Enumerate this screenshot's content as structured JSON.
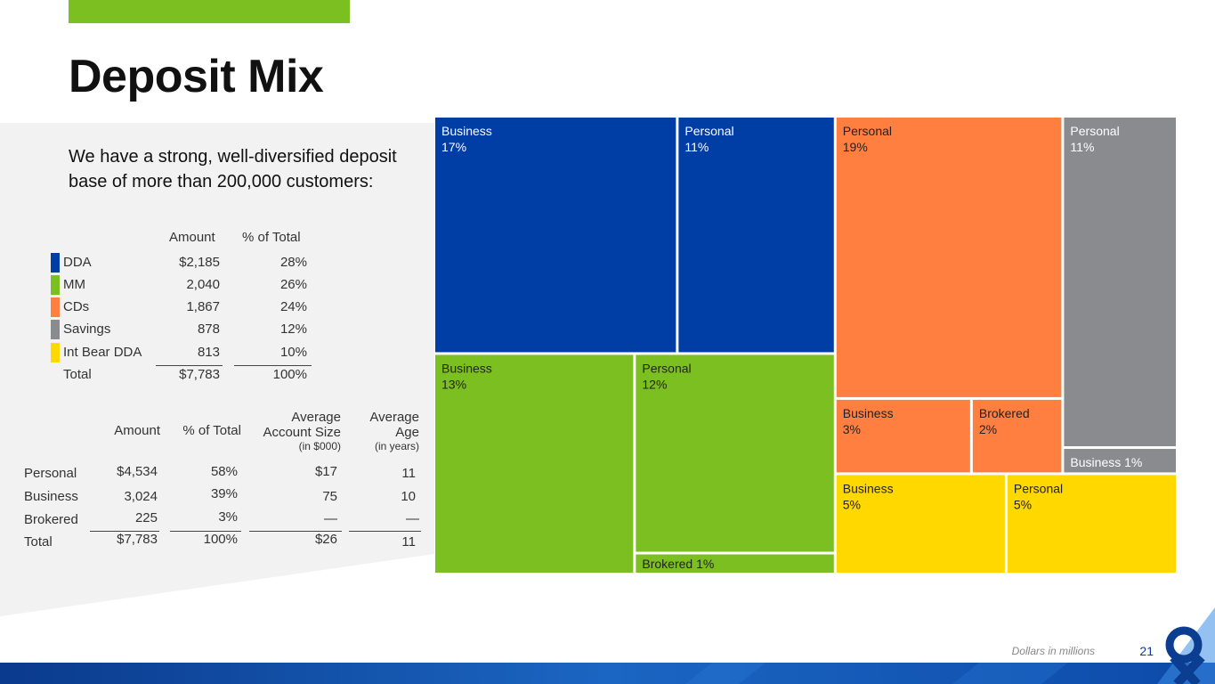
{
  "accent_color": "#7bbf21",
  "title": "Deposit Mix",
  "intro_text": "We have a strong, well-diversified deposit base of  more than 200,000 customers:",
  "summary_table": {
    "headers": {
      "amount": "Amount",
      "pct": "% of Total"
    },
    "rows": [
      {
        "label": "DDA",
        "amount": "$2,185",
        "pct": "28%",
        "color": "#003da5"
      },
      {
        "label": "MM",
        "amount": "2,040",
        "pct": "26%",
        "color": "#7bbf21"
      },
      {
        "label": "CDs",
        "amount": "1,867",
        "pct": "24%",
        "color": "#ff7f41"
      },
      {
        "label": "Savings",
        "amount": "878",
        "pct": "12%",
        "color": "#898b8e"
      },
      {
        "label": "Int Bear DDA",
        "amount": "813",
        "pct": "10%",
        "color": "#ffd800"
      }
    ],
    "total": {
      "label": "Total",
      "amount": "$7,783",
      "pct": "100%"
    }
  },
  "segment_table": {
    "headers": {
      "amount": "Amount",
      "pct": "% of Total",
      "avg_size_line1": "Average",
      "avg_size_line2": "Account Size",
      "avg_size_sub": "(in $000)",
      "avg_age_line1": "Average",
      "avg_age_line2": "Age",
      "avg_age_sub": "(in years)"
    },
    "rows": [
      {
        "label": "Personal",
        "amount": "$4,534",
        "pct": "58%",
        "avg_size": "$17",
        "avg_age": "11"
      },
      {
        "label": "Business",
        "amount": "3,024",
        "pct": "39%",
        "avg_size": "75",
        "avg_age": "10"
      },
      {
        "label": "Brokered",
        "amount": "225",
        "pct": "3%",
        "avg_size": "—",
        "avg_age": "—"
      }
    ],
    "total": {
      "label": "Total",
      "amount": "$7,783",
      "pct": "100%",
      "avg_size": "$26",
      "avg_age": "11"
    }
  },
  "chart_data": {
    "type": "treemap",
    "title": "",
    "groups": [
      {
        "name": "DDA",
        "color": "#003da5",
        "items": [
          {
            "label": "Business",
            "value": 17,
            "text": "17%"
          },
          {
            "label": "Personal",
            "value": 11,
            "text": "11%"
          }
        ]
      },
      {
        "name": "MM",
        "color": "#7bbf21",
        "items": [
          {
            "label": "Business",
            "value": 13,
            "text": "13%"
          },
          {
            "label": "Personal",
            "value": 12,
            "text": "12%"
          },
          {
            "label": "Brokered 1%",
            "value": 1,
            "text": ""
          }
        ]
      },
      {
        "name": "CDs",
        "color": "#ff7f41",
        "items": [
          {
            "label": "Personal",
            "value": 19,
            "text": "19%"
          },
          {
            "label": "Business",
            "value": 3,
            "text": "3%"
          },
          {
            "label": "Brokered",
            "value": 2,
            "text": "2%"
          }
        ]
      },
      {
        "name": "Savings",
        "color": "#898b8e",
        "items": [
          {
            "label": "Personal",
            "value": 11,
            "text": "11%"
          },
          {
            "label": "Business 1%",
            "value": 1,
            "text": ""
          }
        ]
      },
      {
        "name": "Int Bear DDA",
        "color": "#ffd800",
        "items": [
          {
            "label": "Business",
            "value": 5,
            "text": "5%"
          },
          {
            "label": "Personal",
            "value": 5,
            "text": "5%"
          }
        ]
      }
    ]
  },
  "footer_note": "Dollars in millions",
  "page_number": "21",
  "brand_color": "#0b3d91"
}
